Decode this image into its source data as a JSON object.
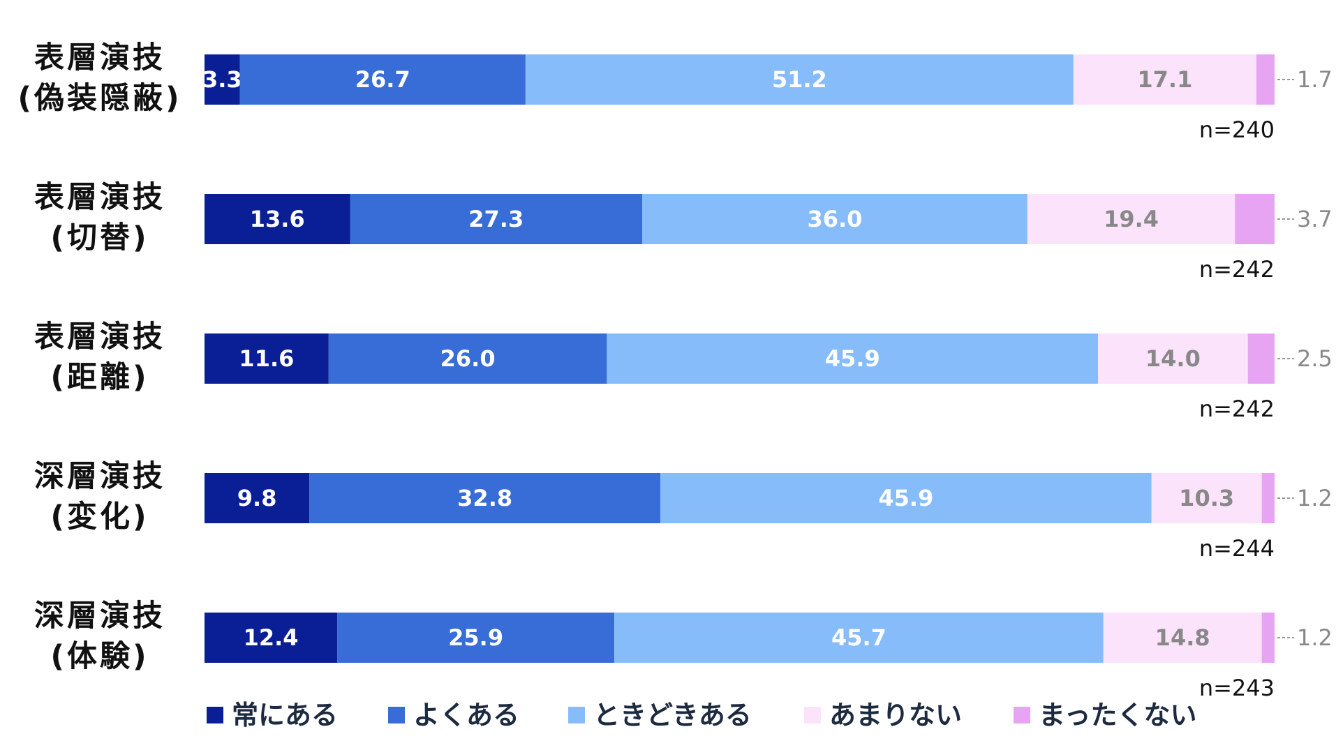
{
  "chart_data": {
    "type": "bar",
    "orientation": "horizontal",
    "stacked": true,
    "percent_stacked": true,
    "title": "",
    "xlabel": "",
    "ylabel": "",
    "xlim": [
      0,
      100
    ],
    "grid": false,
    "legend_position": "bottom",
    "categories": [
      {
        "line1": "表層演技",
        "line2": "(偽装隠蔽)",
        "n": "n=240"
      },
      {
        "line1": "表層演技",
        "line2": "(切替)",
        "n": "n=242"
      },
      {
        "line1": "表層演技",
        "line2": "(距離)",
        "n": "n=242"
      },
      {
        "line1": "深層演技",
        "line2": "(変化)",
        "n": "n=244"
      },
      {
        "line1": "深層演技",
        "line2": "(体験)",
        "n": "n=243"
      }
    ],
    "series": [
      {
        "name": "常にある",
        "color": "#0a1f96",
        "label_color": "#ffffff",
        "values": [
          3.3,
          13.6,
          11.6,
          9.8,
          12.4
        ]
      },
      {
        "name": "よくある",
        "color": "#386cd6",
        "label_color": "#ffffff",
        "values": [
          26.7,
          27.3,
          26.0,
          32.8,
          25.9
        ]
      },
      {
        "name": "ときどきある",
        "color": "#87bcfa",
        "label_color": "#ffffff",
        "values": [
          51.2,
          36.0,
          45.9,
          45.9,
          45.7
        ]
      },
      {
        "name": "あまりない",
        "color": "#fbe3fb",
        "label_color": "#888888",
        "values": [
          17.1,
          19.4,
          14.0,
          10.3,
          14.8
        ]
      },
      {
        "name": "まったくない",
        "color": "#e7a4f3",
        "label_color": "#888888",
        "values": [
          1.7,
          3.7,
          2.5,
          1.2,
          1.2
        ]
      }
    ],
    "value_labels": [
      [
        "3.3",
        "26.7",
        "51.2",
        "17.1",
        "1.7"
      ],
      [
        "13.6",
        "27.3",
        "36.0",
        "19.4",
        "3.7"
      ],
      [
        "11.6",
        "26.0",
        "45.9",
        "14.0",
        "2.5"
      ],
      [
        "9.8",
        "32.8",
        "45.9",
        "10.3",
        "1.2"
      ],
      [
        "12.4",
        "25.9",
        "45.7",
        "14.8",
        "1.2"
      ]
    ]
  }
}
